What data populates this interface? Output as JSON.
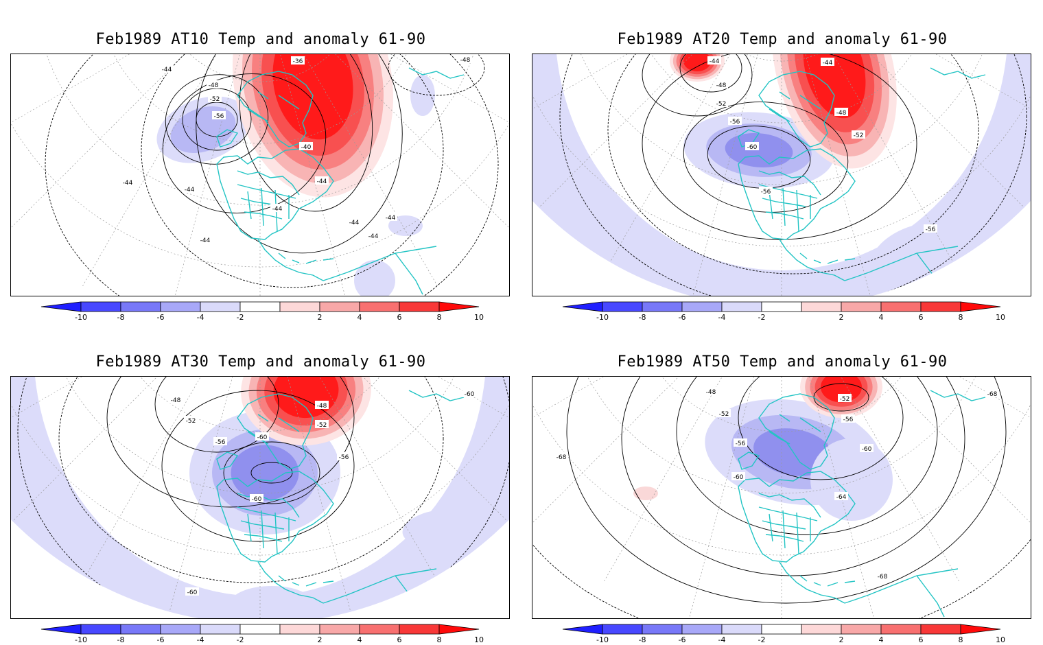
{
  "panels": [
    {
      "title": "Feb1989 AT10 Temp and anomaly 61-90",
      "contour_labels": [
        "-36",
        "-40",
        "-44",
        "-44",
        "-44",
        "-44",
        "-44",
        "-44",
        "-44",
        "-44",
        "-44",
        "-48",
        "-48",
        "-52",
        "-56"
      ]
    },
    {
      "title": "Feb1989 AT20 Temp and anomaly 61-90",
      "contour_labels": [
        "-44",
        "-44",
        "-48",
        "-48",
        "-52",
        "-52",
        "-56",
        "-56",
        "-56",
        "-60"
      ]
    },
    {
      "title": "Feb1989 AT30 Temp and anomaly 61-90",
      "contour_labels": [
        "-48",
        "-48",
        "-52",
        "-52",
        "-56",
        "-56",
        "-60",
        "-60",
        "-60",
        "-60"
      ]
    },
    {
      "title": "Feb1989 AT50 Temp and anomaly 61-90",
      "contour_labels": [
        "-48",
        "-52",
        "-52",
        "-56",
        "-56",
        "-60",
        "-60",
        "-64",
        "-68",
        "-68",
        "-68"
      ]
    }
  ],
  "colorbar": {
    "labels": [
      "-10",
      "-8",
      "-6",
      "-4",
      "-2",
      "2",
      "4",
      "6",
      "8",
      "10"
    ],
    "colors": [
      "#1f1fff",
      "#4848ff",
      "#7878f8",
      "#a8a8f8",
      "#dadafa",
      "#ffffff",
      "#fdd8d8",
      "#f8a8a8",
      "#f87070",
      "#f83838",
      "#ff0a0a"
    ]
  },
  "colors": {
    "coastline": "#22c4c4",
    "anomaly_warm": "#ff1a1a",
    "anomaly_cold": "#8080f0",
    "anomaly_cold_light": "#dcdcfa"
  }
}
